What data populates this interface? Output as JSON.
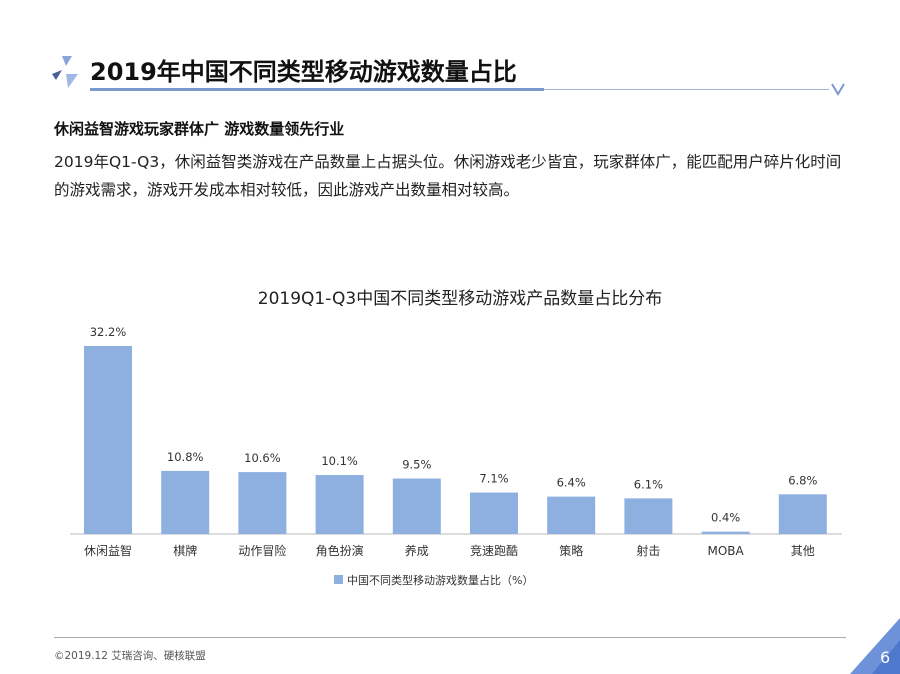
{
  "header": {
    "title": "2019年中国不同类型移动游戏数量占比"
  },
  "subtitle": "休闲益智游戏玩家群体广 游戏数量领先行业",
  "body": "2019年Q1-Q3，休闲益智类游戏在产品数量上占据头位。休闲游戏老少皆宜，玩家群体广，能匹配用户碎片化时间的游戏需求，游戏开发成本相对较低，因此游戏产出数量相对较高。",
  "footer": {
    "source": "©2019.12 艾瑞咨询、硬核联盟",
    "page": "6"
  },
  "colors": {
    "bar": "#8eb0e0",
    "accent": "#5b7fc7"
  },
  "chart_data": {
    "type": "bar",
    "title": "2019Q1-Q3中国不同类型移动游戏产品数量占比分布",
    "categories": [
      "休闲益智",
      "棋牌",
      "动作冒险",
      "角色扮演",
      "养成",
      "竞速跑酷",
      "策略",
      "射击",
      "MOBA",
      "其他"
    ],
    "values": [
      32.2,
      10.8,
      10.6,
      10.1,
      9.5,
      7.1,
      6.4,
      6.1,
      0.4,
      6.8
    ],
    "labels": [
      "32.2%",
      "10.8%",
      "10.6%",
      "10.1%",
      "9.5%",
      "7.1%",
      "6.4%",
      "6.1%",
      "0.4%",
      "6.8%"
    ],
    "legend": "中国不同类型移动游戏数量占比（%）",
    "legend_position": "bottom",
    "xlabel": "",
    "ylabel": "",
    "ylim": [
      0,
      32.2
    ],
    "grid": false
  }
}
